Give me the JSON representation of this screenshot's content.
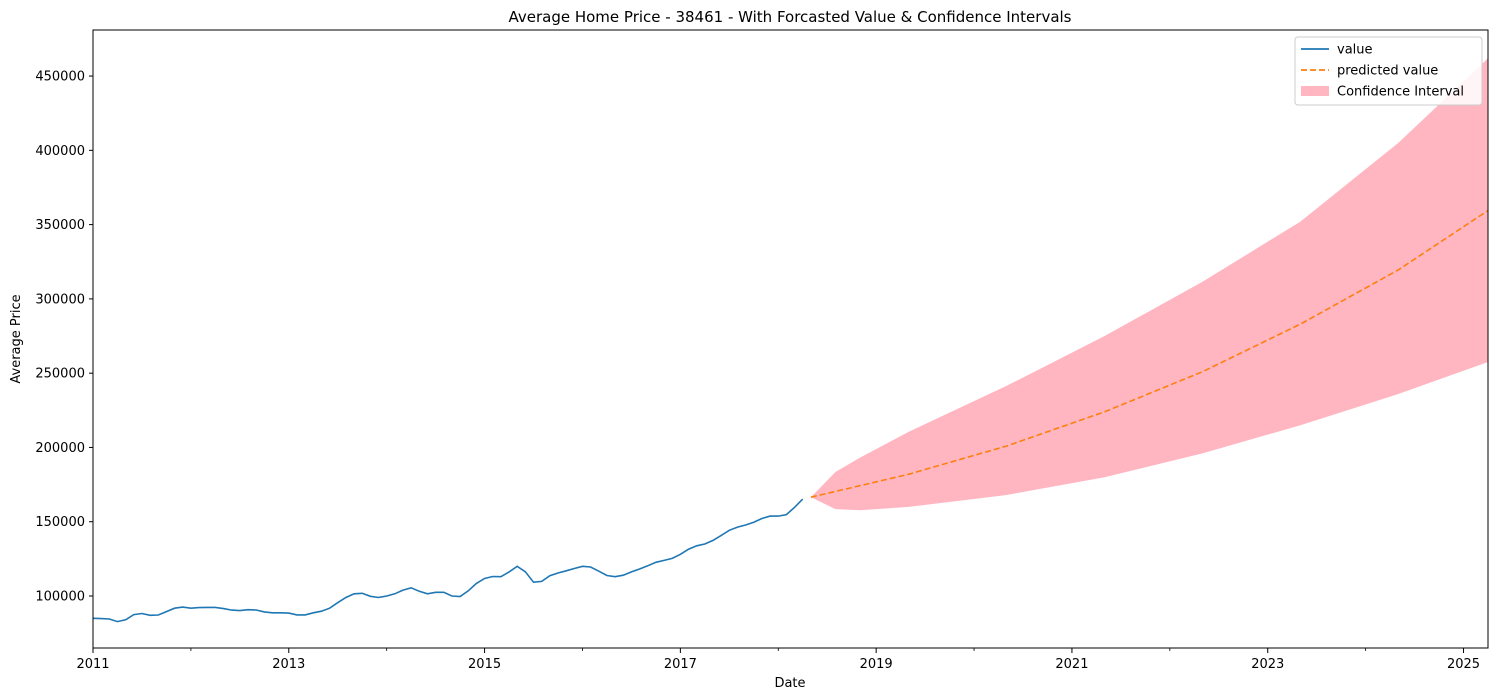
{
  "chart_data": {
    "type": "line",
    "title": "Average Home Price - 38461 - With Forcasted Value & Confidence Intervals",
    "xlabel": "Date",
    "ylabel": "Average Price",
    "xlim": [
      "2011-01",
      "2025-04"
    ],
    "ylim": [
      65000,
      481000
    ],
    "x_ticks": [
      "2011",
      "2013",
      "2015",
      "2017",
      "2019",
      "2021",
      "2023",
      "2025"
    ],
    "y_ticks": [
      100000,
      150000,
      200000,
      250000,
      300000,
      350000,
      400000,
      450000
    ],
    "grid": false,
    "legend_position": "top-right",
    "series": [
      {
        "name": "value",
        "style": "solid",
        "color": "#1f77b4",
        "x": [
          "2011-01",
          "2011-02",
          "2011-03",
          "2011-04",
          "2011-05",
          "2011-06",
          "2011-07",
          "2011-08",
          "2011-09",
          "2011-10",
          "2011-11",
          "2011-12",
          "2012-01",
          "2012-02",
          "2012-03",
          "2012-04",
          "2012-05",
          "2012-06",
          "2012-07",
          "2012-08",
          "2012-09",
          "2012-10",
          "2012-11",
          "2012-12",
          "2013-01",
          "2013-02",
          "2013-03",
          "2013-04",
          "2013-05",
          "2013-06",
          "2013-07",
          "2013-08",
          "2013-09",
          "2013-10",
          "2013-11",
          "2013-12",
          "2014-01",
          "2014-02",
          "2014-03",
          "2014-04",
          "2014-05",
          "2014-06",
          "2014-07",
          "2014-08",
          "2014-09",
          "2014-10",
          "2014-11",
          "2014-12",
          "2015-01",
          "2015-02",
          "2015-03",
          "2015-04",
          "2015-05",
          "2015-06",
          "2015-07",
          "2015-08",
          "2015-09",
          "2015-10",
          "2015-11",
          "2015-12",
          "2016-01",
          "2016-02",
          "2016-03",
          "2016-04",
          "2016-05",
          "2016-06",
          "2016-07",
          "2016-08",
          "2016-09",
          "2016-10",
          "2016-11",
          "2016-12",
          "2017-01",
          "2017-02",
          "2017-03",
          "2017-04",
          "2017-05",
          "2017-06",
          "2017-07",
          "2017-08",
          "2017-09",
          "2017-10",
          "2017-11",
          "2017-12",
          "2018-01",
          "2018-02",
          "2018-03",
          "2018-04"
        ],
        "y": [
          85000,
          84800,
          84500,
          82800,
          84000,
          87500,
          88200,
          87000,
          87200,
          89500,
          91800,
          92500,
          91800,
          92200,
          92300,
          92300,
          91500,
          90500,
          90200,
          90800,
          90600,
          89300,
          88700,
          88700,
          88500,
          87300,
          87300,
          88700,
          89800,
          91800,
          95500,
          99000,
          101500,
          101800,
          99800,
          99000,
          100000,
          101500,
          104000,
          105500,
          103200,
          101500,
          102500,
          102500,
          100000,
          99700,
          103500,
          108500,
          111800,
          113100,
          113000,
          116200,
          120000,
          116300,
          109300,
          109800,
          113700,
          115500,
          117000,
          118500,
          120000,
          119500,
          116700,
          113800,
          113000,
          114000,
          116200,
          118200,
          120300,
          122700,
          124000,
          125300,
          128100,
          131500,
          133800,
          135000,
          137400,
          140800,
          144200,
          146400,
          147800,
          149700,
          152200,
          153800,
          153800,
          154800,
          159700,
          165200
        ]
      },
      {
        "name": "predicted value",
        "style": "dashed",
        "color": "#ff7f0e",
        "x": [
          "2018-05",
          "2019-05",
          "2020-05",
          "2021-05",
          "2022-05",
          "2023-05",
          "2024-05",
          "2025-04"
        ],
        "y": [
          166500,
          182000,
          201000,
          224000,
          251000,
          283000,
          319500,
          359500
        ]
      }
    ],
    "confidence_interval": {
      "name": "Confidence Interval",
      "color": "#ffb6c1",
      "x": [
        "2018-05",
        "2018-08",
        "2018-11",
        "2019-05",
        "2020-05",
        "2021-05",
        "2022-05",
        "2023-05",
        "2024-05",
        "2025-04"
      ],
      "lower": [
        166500,
        158500,
        157700,
        160000,
        168000,
        180000,
        196000,
        215000,
        236000,
        257500
      ],
      "upper": [
        166500,
        183500,
        193000,
        210500,
        241500,
        275000,
        311500,
        352000,
        405000,
        462000
      ]
    }
  }
}
